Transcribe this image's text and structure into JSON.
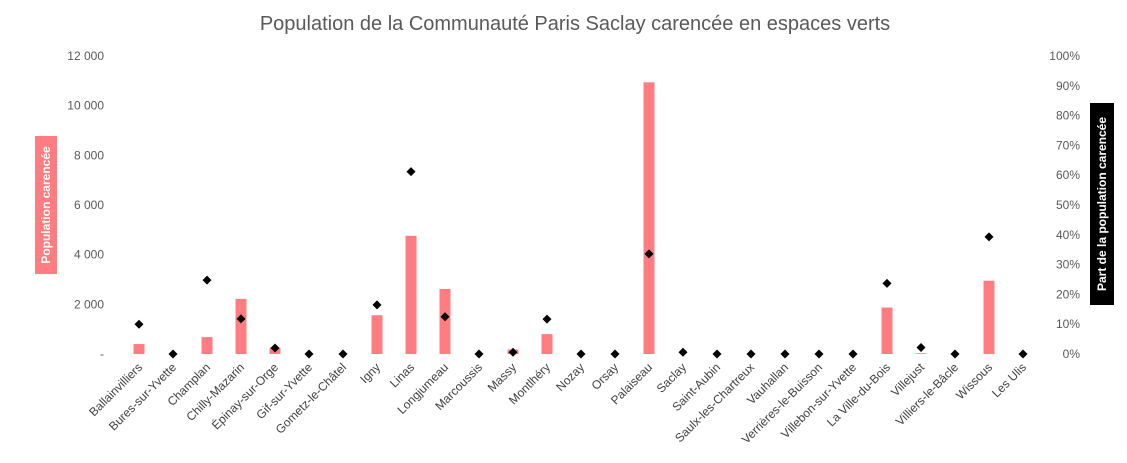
{
  "chart_data": {
    "type": "bar",
    "title": "Population de la Communauté Paris Saclay carencée en espaces verts",
    "ylabel": "Population carencée",
    "y2label": "Part de la population carencée",
    "ylim": [
      0,
      12000
    ],
    "y2lim": [
      0,
      100
    ],
    "yticks": [
      "-",
      "2 000",
      "4 000",
      "6 000",
      "8 000",
      "10 000",
      "12 000"
    ],
    "y2ticks": [
      "0%",
      "10%",
      "20%",
      "30%",
      "40%",
      "50%",
      "60%",
      "70%",
      "80%",
      "90%",
      "100%"
    ],
    "grid": false,
    "categories": [
      "Ballainvilliers",
      "Bures-sur-Yvette",
      "Champlan",
      "Chilly-Mazarin",
      "Épinay-sur-Orge",
      "Gif-sur-Yvette",
      "Gometz-le-Châtel",
      "Igny",
      "Linas",
      "Longjumeau",
      "Marcoussis",
      "Massy",
      "Montlhéry",
      "Nozay",
      "Orsay",
      "Palaiseau",
      "Saclay",
      "Saint-Aubin",
      "Saulx-les-Chartreux",
      "Vauhallan",
      "Verrières-le-Buisson",
      "Villebon-sur-Yvette",
      "La Ville-du-Bois",
      "Villejust",
      "Villiers-le-Bâcle",
      "Wissous",
      "Les Ulis"
    ],
    "series": [
      {
        "type": "bar",
        "axis": "left",
        "color": "#ff7c80",
        "values": [
          400,
          0,
          680,
          2220,
          250,
          0,
          0,
          1560,
          4760,
          2620,
          0,
          180,
          800,
          0,
          0,
          10940,
          0,
          0,
          0,
          0,
          0,
          0,
          1870,
          30,
          0,
          2950,
          0
        ]
      },
      {
        "type": "scatter",
        "axis": "right",
        "marker": "diamond",
        "color": "#000000",
        "values": [
          10,
          0,
          24.8,
          11.8,
          2,
          0,
          0,
          16.5,
          61.2,
          12.5,
          0,
          0.6,
          11.7,
          0,
          0,
          33.6,
          0.6,
          0,
          0,
          0,
          0,
          0,
          23.7,
          2.2,
          0,
          39.3,
          0
        ]
      }
    ]
  }
}
